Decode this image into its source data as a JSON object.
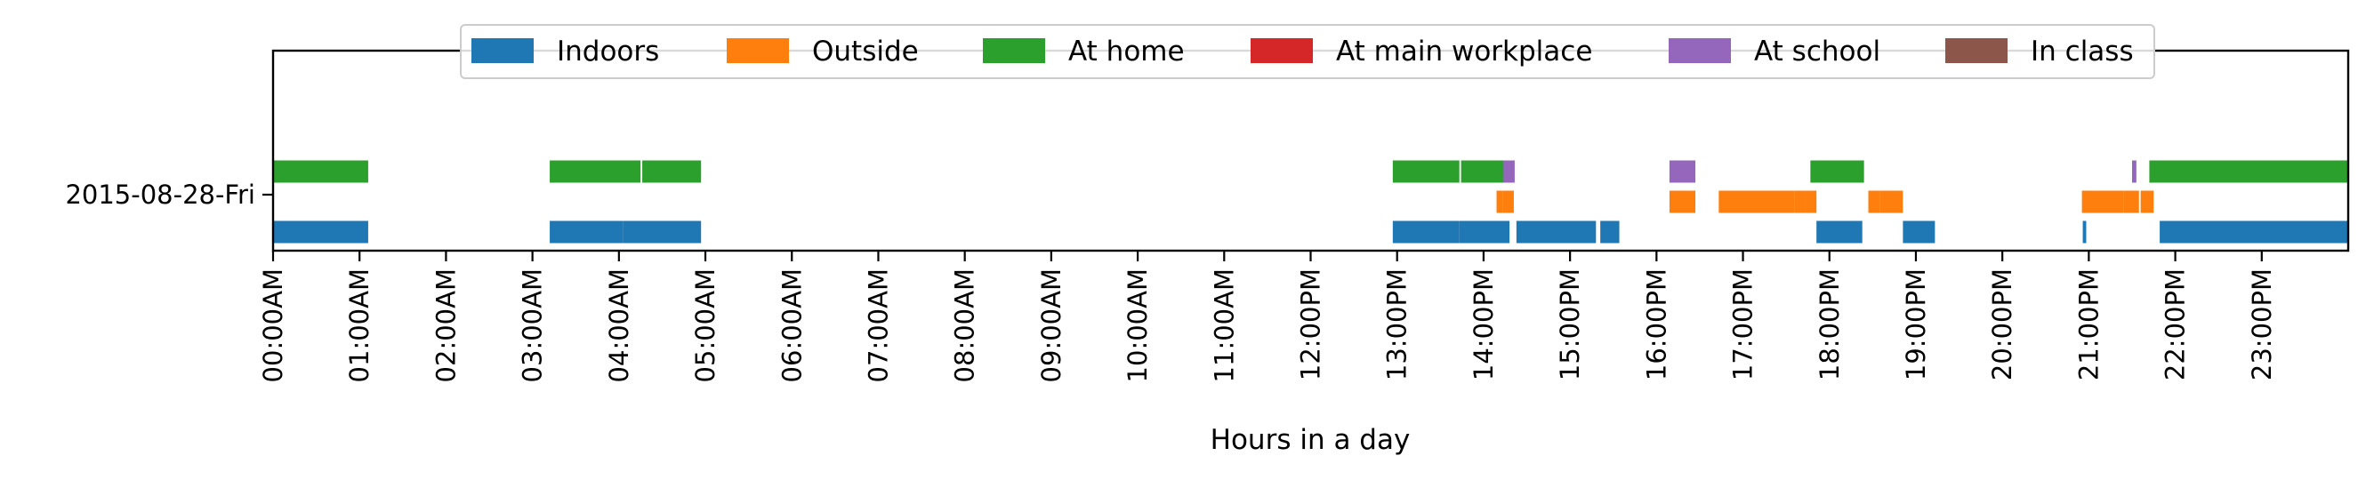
{
  "chart_data": {
    "type": "timeline",
    "xlabel": "Hours in a day",
    "xlim": [
      0,
      24
    ],
    "rows": [
      "2015-08-28-Fri"
    ],
    "x_ticks": [
      "00:00AM",
      "01:00AM",
      "02:00AM",
      "03:00AM",
      "04:00AM",
      "05:00AM",
      "06:00AM",
      "07:00AM",
      "08:00AM",
      "09:00AM",
      "10:00AM",
      "11:00AM",
      "12:00PM",
      "13:00PM",
      "14:00PM",
      "15:00PM",
      "16:00PM",
      "17:00PM",
      "18:00PM",
      "19:00PM",
      "20:00PM",
      "21:00PM",
      "22:00PM",
      "23:00PM"
    ],
    "legend_position": "top-center",
    "series": [
      {
        "name": "Indoors",
        "color": "#1f77b4",
        "level": 0,
        "intervals": [
          [
            0.0,
            1.1
          ],
          [
            3.2,
            4.05
          ],
          [
            4.05,
            4.95
          ],
          [
            12.95,
            13.72
          ],
          [
            13.72,
            14.3
          ],
          [
            14.38,
            15.3
          ],
          [
            15.35,
            15.57
          ],
          [
            17.85,
            18.38
          ],
          [
            18.85,
            19.22
          ],
          [
            20.93,
            20.97
          ],
          [
            21.82,
            24.0
          ]
        ]
      },
      {
        "name": "Outside",
        "color": "#ff7f0e",
        "level": 1,
        "intervals": [
          [
            14.15,
            14.22
          ],
          [
            14.22,
            14.35
          ],
          [
            16.15,
            16.45
          ],
          [
            16.72,
            17.6
          ],
          [
            17.6,
            17.72
          ],
          [
            17.72,
            17.85
          ],
          [
            18.45,
            18.58
          ],
          [
            18.58,
            18.85
          ],
          [
            20.92,
            21.4
          ],
          [
            21.4,
            21.58
          ],
          [
            21.6,
            21.75
          ]
        ]
      },
      {
        "name": "At home",
        "color": "#2ca02c",
        "level": 2,
        "intervals": [
          [
            0.0,
            1.1
          ],
          [
            3.2,
            4.25
          ],
          [
            4.27,
            4.95
          ],
          [
            12.95,
            13.72
          ],
          [
            13.74,
            14.25
          ],
          [
            17.78,
            18.4
          ],
          [
            21.7,
            24.0
          ]
        ]
      },
      {
        "name": "At main workplace",
        "color": "#d62728",
        "level": 3,
        "intervals": []
      },
      {
        "name": "At school",
        "color": "#9467bd",
        "level": 4,
        "intervals": [
          [
            14.23,
            14.36
          ],
          [
            16.15,
            16.45
          ],
          [
            21.5,
            21.55
          ]
        ]
      },
      {
        "name": "In class",
        "color": "#8c564b",
        "level": 5,
        "intervals": []
      }
    ]
  }
}
